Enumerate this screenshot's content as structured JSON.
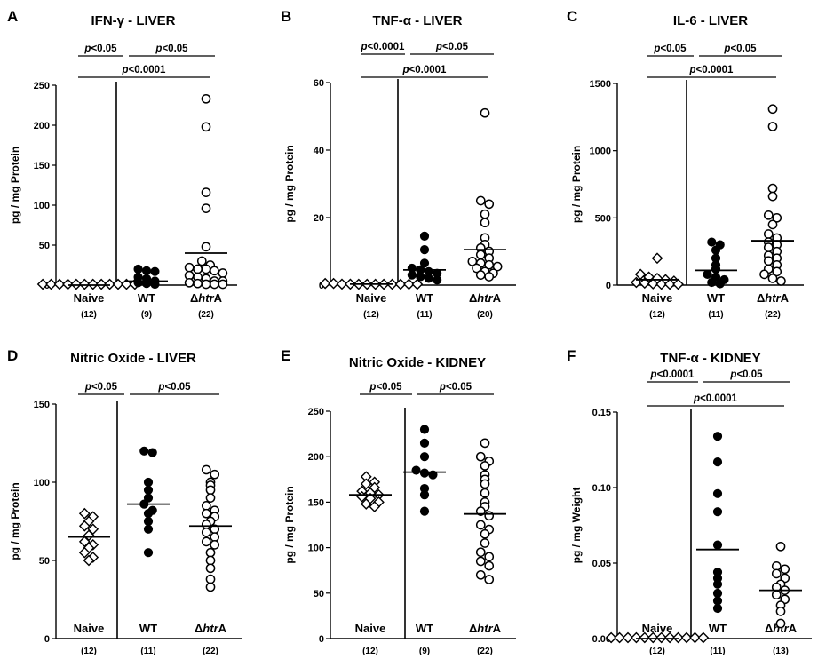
{
  "chart_data": [
    {
      "panel": "A",
      "title": "IFN-γ - LIVER",
      "type": "scatter",
      "ylabel": "pg / mg  Protein",
      "ylim": [
        0,
        250
      ],
      "yticks": [
        0,
        50,
        100,
        150,
        200,
        250
      ],
      "groups": [
        {
          "name": "Naive",
          "n_label": "(12)",
          "marker": "open-diamond",
          "values": [
            0,
            0,
            0,
            0,
            0,
            0,
            0,
            0,
            0,
            0,
            0,
            0
          ],
          "mean": 0
        },
        {
          "name": "WT",
          "n_label": "(9)",
          "marker": "filled-circle",
          "values": [
            20,
            18,
            17,
            10,
            8,
            5,
            3,
            2,
            1
          ],
          "mean": 5
        },
        {
          "name": "ΔhtrA",
          "n_label": "(22)",
          "marker": "open-circle",
          "values": [
            233,
            198,
            116,
            96,
            48,
            30,
            25,
            22,
            20,
            20,
            18,
            15,
            12,
            10,
            8,
            5,
            5,
            3,
            2,
            1,
            0,
            0
          ],
          "mean": 40
        }
      ],
      "comparisons": [
        {
          "label": "p<0.05",
          "groups": [
            "Naive",
            "WT"
          ]
        },
        {
          "label": "p<0.05",
          "groups": [
            "WT",
            "ΔhtrA"
          ]
        },
        {
          "label": "p<0.0001",
          "groups": [
            "Naive",
            "ΔhtrA"
          ]
        }
      ]
    },
    {
      "panel": "B",
      "title": "TNF-α - LIVER",
      "type": "scatter",
      "ylabel": "pg / mg  Protein",
      "ylim": [
        0,
        60
      ],
      "yticks": [
        0,
        20,
        40,
        60
      ],
      "groups": [
        {
          "name": "Naive",
          "n_label": "(12)",
          "marker": "open-diamond",
          "values": [
            0.5,
            0.5,
            0.3,
            0.3,
            0.2,
            0.2,
            0.1,
            0.1,
            0.1,
            0,
            0,
            0
          ],
          "mean": 0.3
        },
        {
          "name": "WT",
          "n_label": "(11)",
          "marker": "filled-circle",
          "values": [
            14.5,
            10.5,
            6.5,
            5,
            4.5,
            4,
            3.5,
            3,
            2.5,
            2,
            1.5
          ],
          "mean": 4.5
        },
        {
          "name": "ΔhtrA",
          "n_label": "(20)",
          "marker": "open-circle",
          "values": [
            51,
            25,
            24,
            21,
            18.5,
            14,
            12,
            11,
            10,
            9,
            8,
            7,
            6.5,
            6,
            5.5,
            5,
            4,
            3.5,
            3,
            2.5
          ],
          "mean": 10.5
        }
      ],
      "comparisons": [
        {
          "label": "p<0.0001",
          "groups": [
            "Naive",
            "WT"
          ]
        },
        {
          "label": "p<0.05",
          "groups": [
            "WT",
            "ΔhtrA"
          ]
        },
        {
          "label": "p<0.0001",
          "groups": [
            "Naive",
            "ΔhtrA"
          ]
        }
      ]
    },
    {
      "panel": "C",
      "title": "IL-6 - LIVER",
      "type": "scatter",
      "ylabel": "pg / mg  Protein",
      "ylim": [
        0,
        1500
      ],
      "yticks": [
        0,
        500,
        1000,
        1500
      ],
      "groups": [
        {
          "name": "Naive",
          "n_label": "(12)",
          "marker": "open-diamond",
          "values": [
            200,
            80,
            60,
            50,
            40,
            30,
            20,
            15,
            10,
            5,
            3,
            0
          ],
          "mean": 40
        },
        {
          "name": "WT",
          "n_label": "(11)",
          "marker": "filled-circle",
          "values": [
            320,
            300,
            260,
            200,
            150,
            120,
            80,
            60,
            40,
            20,
            10
          ],
          "mean": 110
        },
        {
          "name": "ΔhtrA",
          "n_label": "(22)",
          "marker": "open-circle",
          "values": [
            1310,
            1180,
            720,
            660,
            520,
            500,
            450,
            380,
            350,
            320,
            300,
            280,
            250,
            220,
            200,
            180,
            150,
            120,
            100,
            80,
            50,
            30
          ],
          "mean": 330
        }
      ],
      "comparisons": [
        {
          "label": "p<0.05",
          "groups": [
            "Naive",
            "WT"
          ]
        },
        {
          "label": "p<0.05",
          "groups": [
            "WT",
            "ΔhtrA"
          ]
        },
        {
          "label": "p<0.0001",
          "groups": [
            "Naive",
            "ΔhtrA"
          ]
        }
      ]
    },
    {
      "panel": "D",
      "title": "Nitric Oxide - LIVER",
      "type": "scatter",
      "ylabel": "pg / mg  Protein",
      "ylim": [
        0,
        150
      ],
      "yticks": [
        0,
        50,
        100,
        150
      ],
      "groups": [
        {
          "name": "Naive",
          "n_label": "(12)",
          "marker": "open-diamond",
          "values": [
            80,
            78,
            75,
            72,
            70,
            66,
            62,
            60,
            58,
            55,
            52,
            50
          ],
          "mean": 65
        },
        {
          "name": "WT",
          "n_label": "(11)",
          "marker": "filled-circle",
          "values": [
            120,
            119,
            100,
            95,
            90,
            86,
            82,
            80,
            75,
            70,
            55
          ],
          "mean": 86
        },
        {
          "name": "ΔhtrA",
          "n_label": "(22)",
          "marker": "open-circle",
          "values": [
            108,
            105,
            100,
            98,
            95,
            90,
            85,
            82,
            80,
            78,
            75,
            73,
            70,
            68,
            65,
            62,
            60,
            55,
            50,
            45,
            38,
            33
          ],
          "mean": 72
        }
      ],
      "comparisons": [
        {
          "label": "p<0.05",
          "groups": [
            "Naive",
            "WT"
          ]
        },
        {
          "label": "p<0.05",
          "groups": [
            "WT",
            "ΔhtrA"
          ]
        }
      ]
    },
    {
      "panel": "E",
      "title": "Nitric Oxide - KIDNEY",
      "type": "scatter",
      "ylabel": "pg / mg Protein",
      "ylim": [
        0,
        250
      ],
      "yticks": [
        0,
        50,
        100,
        150,
        200,
        250
      ],
      "groups": [
        {
          "name": "Naive",
          "n_label": "(12)",
          "marker": "open-diamond",
          "values": [
            178,
            172,
            170,
            166,
            162,
            160,
            158,
            156,
            154,
            150,
            148,
            145
          ],
          "mean": 158
        },
        {
          "name": "WT",
          "n_label": "(9)",
          "marker": "filled-circle",
          "values": [
            230,
            215,
            200,
            185,
            182,
            180,
            165,
            158,
            140
          ],
          "mean": 183
        },
        {
          "name": "ΔhtrA",
          "n_label": "(22)",
          "marker": "open-circle",
          "values": [
            215,
            200,
            195,
            190,
            180,
            175,
            170,
            160,
            150,
            145,
            140,
            135,
            125,
            120,
            115,
            105,
            95,
            90,
            85,
            80,
            70,
            65
          ],
          "mean": 137
        }
      ],
      "comparisons": [
        {
          "label": "p<0.05",
          "groups": [
            "Naive",
            "WT"
          ]
        },
        {
          "label": "p<0.05",
          "groups": [
            "WT",
            "ΔhtrA"
          ]
        }
      ]
    },
    {
      "panel": "F",
      "title": "TNF-α - KIDNEY",
      "type": "scatter",
      "ylabel": "pg / mg Weight",
      "ylim": [
        0,
        0.15
      ],
      "yticks": [
        0.0,
        0.05,
        0.1,
        0.15
      ],
      "ytick_labels": [
        "0.00",
        "0.05",
        "0.10",
        "0.15"
      ],
      "groups": [
        {
          "name": "Naive",
          "n_label": "(12)",
          "marker": "open-diamond",
          "values": [
            0,
            0,
            0,
            0,
            0,
            0,
            0,
            0,
            0,
            0,
            0,
            0
          ],
          "mean": 0
        },
        {
          "name": "WT",
          "n_label": "(11)",
          "marker": "filled-circle",
          "values": [
            0.134,
            0.117,
            0.096,
            0.084,
            0.062,
            0.044,
            0.04,
            0.036,
            0.03,
            0.025,
            0.02
          ],
          "mean": 0.059
        },
        {
          "name": "ΔhtrA",
          "n_label": "(13)",
          "marker": "open-circle",
          "values": [
            0.061,
            0.048,
            0.046,
            0.043,
            0.04,
            0.036,
            0.034,
            0.032,
            0.029,
            0.026,
            0.022,
            0.018,
            0.01
          ],
          "mean": 0.032
        }
      ],
      "comparisons": [
        {
          "label": "p<0.0001",
          "groups": [
            "Naive",
            "WT"
          ]
        },
        {
          "label": "p<0.05",
          "groups": [
            "WT",
            "ΔhtrA"
          ]
        },
        {
          "label": "p<0.0001",
          "groups": [
            "Naive",
            "ΔhtrA"
          ]
        }
      ]
    }
  ]
}
